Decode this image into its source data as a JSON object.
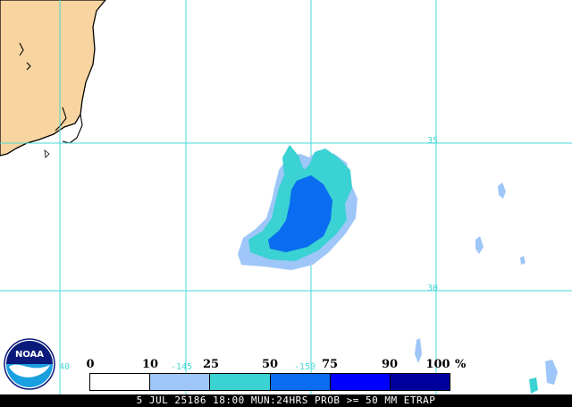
{
  "map": {
    "colors": {
      "land": "#f8d5a0",
      "coastline": "#000000",
      "grid": "#4ad8d8"
    },
    "grid_labels": {
      "lat_35": "35",
      "lat_30": "30",
      "lon_145": "-145",
      "lon_150": "-150",
      "lon_140": "40"
    }
  },
  "legend": {
    "ticks": [
      "0",
      "10",
      "25",
      "50",
      "75",
      "90",
      "100"
    ],
    "unit": "%",
    "bins": [
      {
        "range": "0-10",
        "color": "#ffffff"
      },
      {
        "range": "10-25",
        "color": "#9ec6f8"
      },
      {
        "range": "25-50",
        "color": "#3ad2d2"
      },
      {
        "range": "50-75",
        "color": "#0a6cf0"
      },
      {
        "range": "75-90",
        "color": "#0000ff"
      },
      {
        "range": "90-100",
        "color": "#00009c"
      }
    ]
  },
  "caption": "5 JUL 25186 18:00 MUN:24HRS PROB >= 50 MM ETRAP",
  "logo": {
    "text": "NOAA",
    "icon": "noaa-logo-icon",
    "colors": {
      "top": "#0a1a7a",
      "bottom": "#1aa0e0",
      "bird": "#ffffff"
    }
  }
}
